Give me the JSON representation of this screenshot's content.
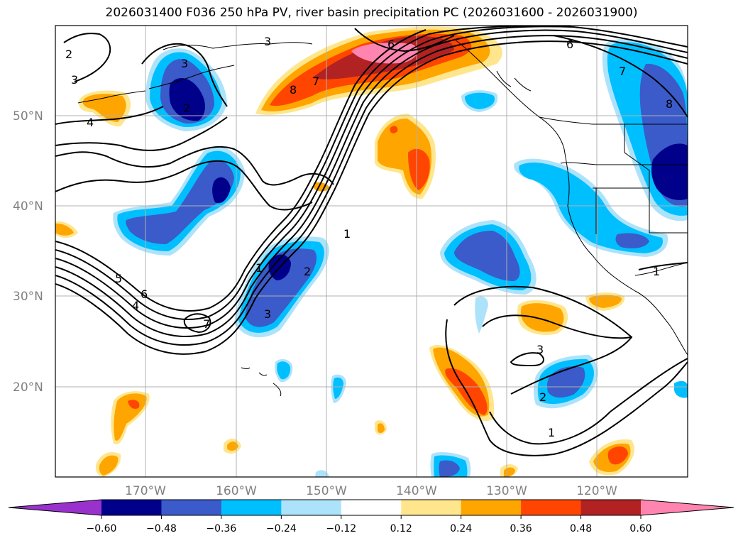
{
  "title": "2026031400 F036 250 hPa PV, river basin precipitation PC (2026031600 - 2026031900)",
  "lat_labels": [
    "50°N",
    "40°N",
    "30°N",
    "20°N"
  ],
  "lon_labels": [
    "170°W",
    "160°W",
    "150°W",
    "140°W",
    "130°W",
    "120°W"
  ],
  "colorbar": {
    "ticks": [
      "−0.60",
      "−0.48",
      "−0.36",
      "−0.24",
      "−0.12",
      "0.12",
      "0.24",
      "0.36",
      "0.48",
      "0.60"
    ],
    "colors": [
      "#9932CC",
      "#00008B",
      "#3A5BC9",
      "#00BFFF",
      "#ADE3FA",
      "#FFFFFF",
      "#FFE68C",
      "#FFA500",
      "#FF4500",
      "#B22222",
      "#FF85B0"
    ]
  },
  "contour_labels": [
    "2",
    "3",
    "4",
    "5",
    "6",
    "7",
    "8",
    "1",
    "2",
    "3",
    "6",
    "7",
    "8",
    "6",
    "1",
    "3",
    "2",
    "1",
    "3",
    "2",
    "7",
    "4",
    "1",
    "3"
  ],
  "colors": {
    "land_line": "#000000",
    "grid": "#b0b0b0",
    "label_grey": "#808080"
  }
}
